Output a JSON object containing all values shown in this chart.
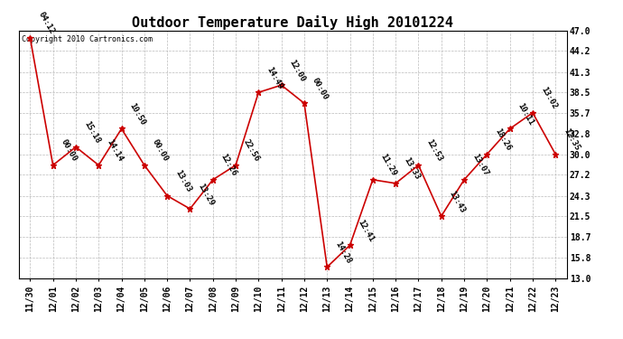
{
  "title": "Outdoor Temperature Daily High 20101224",
  "copyright": "Copyright 2010 Cartronics.com",
  "x_labels": [
    "11/30",
    "12/01",
    "12/02",
    "12/03",
    "12/04",
    "12/05",
    "12/06",
    "12/07",
    "12/08",
    "12/09",
    "12/10",
    "12/11",
    "12/12",
    "12/13",
    "12/14",
    "12/15",
    "12/16",
    "12/17",
    "12/18",
    "12/19",
    "12/20",
    "12/21",
    "12/22",
    "12/23"
  ],
  "y_values": [
    46.0,
    28.5,
    31.0,
    28.5,
    33.5,
    28.5,
    24.3,
    22.5,
    26.5,
    28.5,
    38.5,
    39.5,
    37.0,
    14.5,
    17.5,
    26.5,
    26.0,
    28.5,
    21.5,
    26.5,
    30.0,
    33.5,
    35.7,
    30.0
  ],
  "time_labels": [
    "04:12",
    "00:00",
    "15:18",
    "14:14",
    "10:50",
    "00:00",
    "13:03",
    "13:29",
    "12:26",
    "22:56",
    "14:49",
    "12:00",
    "00:00",
    "14:28",
    "12:41",
    "11:29",
    "13:33",
    "12:53",
    "13:43",
    "13:07",
    "18:26",
    "10:11",
    "13:02",
    "12:35"
  ],
  "y_ticks": [
    13.0,
    15.8,
    18.7,
    21.5,
    24.3,
    27.2,
    30.0,
    32.8,
    35.7,
    38.5,
    41.3,
    44.2,
    47.0
  ],
  "y_min": 13.0,
  "y_max": 47.0,
  "line_color": "#cc0000",
  "marker_color": "#cc0000",
  "bg_color": "#ffffff",
  "grid_color": "#bbbbbb",
  "title_fontsize": 11,
  "tick_fontsize": 7,
  "annotation_fontsize": 6.5,
  "copyright_fontsize": 6
}
